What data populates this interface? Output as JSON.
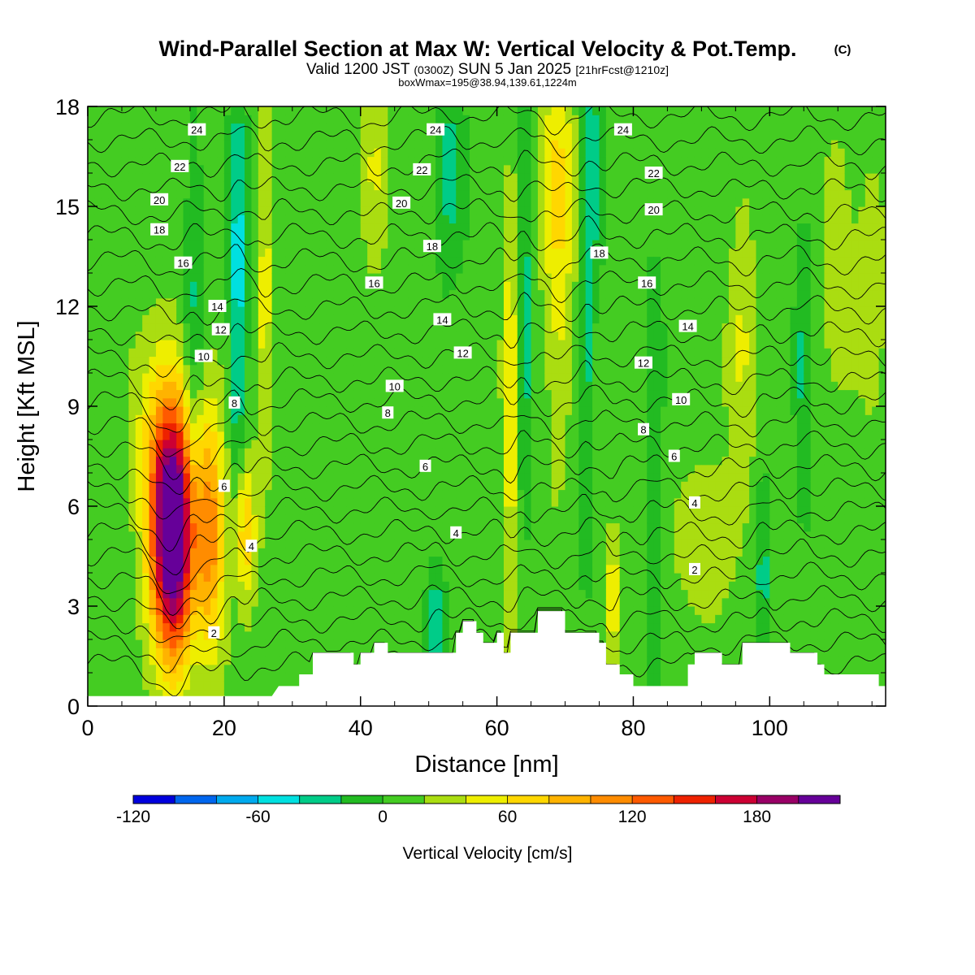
{
  "header": {
    "title": "Wind-Parallel Section at Max W: Vertical Velocity & Pot.Temp.",
    "copyright": "(C)",
    "valid_main": "Valid 1200 JST",
    "valid_zulu": "(0300Z)",
    "valid_date": "SUN 5 Jan 2025",
    "forecast_info": "[21hrFcst@1210z]",
    "box_info": "boxWmax=195@38.94,139.61,1224m"
  },
  "chart_data": {
    "type": "heatmap",
    "xlabel": "Distance [nm]",
    "ylabel": "Height [Kft MSL]",
    "xlim": [
      0,
      117
    ],
    "ylim": [
      0,
      18
    ],
    "x_ticks": [
      0,
      20,
      40,
      60,
      80,
      100
    ],
    "y_ticks": [
      0,
      3,
      6,
      9,
      12,
      15,
      18
    ],
    "x_tick_labels": [
      "0",
      "20",
      "40",
      "60",
      "80",
      "100"
    ],
    "y_tick_labels": [
      "0",
      "3",
      "6",
      "9",
      "12",
      "15",
      "18"
    ],
    "colorbar": {
      "label": "Vertical Velocity [cm/s]",
      "min": -120,
      "max": 220,
      "step": 20,
      "tick_values": [
        -120,
        -60,
        0,
        60,
        120,
        180
      ],
      "tick_labels": [
        "-120",
        "-60",
        "0",
        "60",
        "120",
        "180"
      ],
      "colors": [
        "#0000dd",
        "#0066ee",
        "#00aaee",
        "#00e0e0",
        "#00cc88",
        "#22bb22",
        "#44cc22",
        "#aadd11",
        "#eeee00",
        "#ffd700",
        "#ffb300",
        "#ff8c00",
        "#ff5a00",
        "#ee2200",
        "#cc0033",
        "#990066",
        "#660099"
      ]
    },
    "w_features": [
      {
        "x": 12.5,
        "z": 4.8,
        "amp": 210,
        "sx": 2.2,
        "sz": 2.6
      },
      {
        "x": 11.5,
        "z": 7.5,
        "amp": 70,
        "sx": 3.0,
        "sz": 2.5
      },
      {
        "x": 18,
        "z": 5.2,
        "amp": 95,
        "sx": 1.6,
        "sz": 2.6
      },
      {
        "x": 23,
        "z": 5.3,
        "amp": 80,
        "sx": 1.2,
        "sz": 1.6
      },
      {
        "x": 15.5,
        "z": 10.5,
        "amp": -35,
        "sx": 1.0,
        "sz": 5.0
      },
      {
        "x": 22,
        "z": 12,
        "amp": -60,
        "sx": 0.9,
        "sz": 4.5
      },
      {
        "x": 26,
        "z": 13,
        "amp": 40,
        "sx": 0.8,
        "sz": 4.5
      },
      {
        "x": 42,
        "z": 16,
        "amp": 40,
        "sx": 1.5,
        "sz": 2.0
      },
      {
        "x": 53,
        "z": 16,
        "amp": -40,
        "sx": 1.5,
        "sz": 2.0
      },
      {
        "x": 51,
        "z": 2.5,
        "amp": -50,
        "sx": 1.0,
        "sz": 1.2
      },
      {
        "x": 62,
        "z": 9,
        "amp": 50,
        "sx": 0.8,
        "sz": 5.0
      },
      {
        "x": 64,
        "z": 12,
        "amp": -40,
        "sx": 0.7,
        "sz": 5.0
      },
      {
        "x": 69,
        "z": 15,
        "amp": 55,
        "sx": 1.6,
        "sz": 4.5
      },
      {
        "x": 74,
        "z": 16,
        "amp": -35,
        "sx": 1.0,
        "sz": 3.0
      },
      {
        "x": 77,
        "z": 3.5,
        "amp": 60,
        "sx": 0.6,
        "sz": 1.5
      },
      {
        "x": 73,
        "z": 10,
        "amp": -40,
        "sx": 0.6,
        "sz": 4.0
      },
      {
        "x": 83,
        "z": 7,
        "amp": -30,
        "sx": 0.8,
        "sz": 4.5
      },
      {
        "x": 91,
        "z": 5,
        "amp": 30,
        "sx": 3.0,
        "sz": 1.8
      },
      {
        "x": 96,
        "z": 11,
        "amp": 30,
        "sx": 1.5,
        "sz": 4.0
      },
      {
        "x": 99,
        "z": 4,
        "amp": -40,
        "sx": 0.7,
        "sz": 2.0
      },
      {
        "x": 105,
        "z": 10,
        "amp": -30,
        "sx": 0.8,
        "sz": 4.0
      },
      {
        "x": 110,
        "z": 14,
        "amp": 25,
        "sx": 2.0,
        "sz": 3.0
      },
      {
        "x": 115,
        "z": 13,
        "amp": 25,
        "sx": 1.5,
        "sz": 3.0
      }
    ],
    "terrain": [
      {
        "x": 0,
        "z": 0.3
      },
      {
        "x": 27,
        "z": 0.3
      },
      {
        "x": 28,
        "z": 0.6
      },
      {
        "x": 31,
        "z": 0.6
      },
      {
        "x": 31,
        "z": 0.95
      },
      {
        "x": 33,
        "z": 0.95
      },
      {
        "x": 33,
        "z": 1.6
      },
      {
        "x": 39,
        "z": 1.6
      },
      {
        "x": 39,
        "z": 1.25
      },
      {
        "x": 40,
        "z": 1.25
      },
      {
        "x": 40,
        "z": 1.6
      },
      {
        "x": 42,
        "z": 1.6
      },
      {
        "x": 42,
        "z": 1.9
      },
      {
        "x": 44,
        "z": 1.9
      },
      {
        "x": 44,
        "z": 1.6
      },
      {
        "x": 54,
        "z": 1.6
      },
      {
        "x": 54,
        "z": 2.2
      },
      {
        "x": 55,
        "z": 2.2
      },
      {
        "x": 55,
        "z": 2.55
      },
      {
        "x": 57,
        "z": 2.55
      },
      {
        "x": 57,
        "z": 2.2
      },
      {
        "x": 58,
        "z": 2.2
      },
      {
        "x": 58,
        "z": 1.9
      },
      {
        "x": 60,
        "z": 1.9
      },
      {
        "x": 60,
        "z": 2.2
      },
      {
        "x": 61,
        "z": 2.2
      },
      {
        "x": 61,
        "z": 1.6
      },
      {
        "x": 62,
        "z": 1.6
      },
      {
        "x": 62,
        "z": 2.2
      },
      {
        "x": 66,
        "z": 2.2
      },
      {
        "x": 66,
        "z": 2.85
      },
      {
        "x": 70,
        "z": 2.85
      },
      {
        "x": 70,
        "z": 2.2
      },
      {
        "x": 75,
        "z": 2.2
      },
      {
        "x": 75,
        "z": 1.9
      },
      {
        "x": 76,
        "z": 1.9
      },
      {
        "x": 76,
        "z": 1.25
      },
      {
        "x": 78,
        "z": 1.25
      },
      {
        "x": 78,
        "z": 0.95
      },
      {
        "x": 80,
        "z": 0.95
      },
      {
        "x": 80,
        "z": 0.6
      },
      {
        "x": 88,
        "z": 0.6
      },
      {
        "x": 88,
        "z": 1.25
      },
      {
        "x": 89,
        "z": 1.25
      },
      {
        "x": 89,
        "z": 1.6
      },
      {
        "x": 93,
        "z": 1.6
      },
      {
        "x": 93,
        "z": 1.25
      },
      {
        "x": 96,
        "z": 1.25
      },
      {
        "x": 96,
        "z": 1.9
      },
      {
        "x": 103,
        "z": 1.9
      },
      {
        "x": 103,
        "z": 1.6
      },
      {
        "x": 107,
        "z": 1.6
      },
      {
        "x": 107,
        "z": 1.25
      },
      {
        "x": 108,
        "z": 1.25
      },
      {
        "x": 108,
        "z": 0.95
      },
      {
        "x": 116,
        "z": 0.95
      },
      {
        "x": 116,
        "z": 0.6
      },
      {
        "x": 117,
        "z": 0.6
      }
    ],
    "theta_contours": [
      1,
      2,
      3,
      4,
      5,
      6,
      7,
      8,
      9,
      10,
      11,
      12,
      13,
      14,
      15,
      16,
      17,
      18,
      19,
      20,
      21,
      22,
      23,
      24,
      25
    ],
    "theta_labels": [
      {
        "text": "24",
        "x": 16,
        "z": 17.3
      },
      {
        "text": "22",
        "x": 13.5,
        "z": 16.2
      },
      {
        "text": "20",
        "x": 10.5,
        "z": 15.2
      },
      {
        "text": "18",
        "x": 10.5,
        "z": 14.3
      },
      {
        "text": "16",
        "x": 14,
        "z": 13.3
      },
      {
        "text": "14",
        "x": 19,
        "z": 12.0
      },
      {
        "text": "12",
        "x": 19.5,
        "z": 11.3
      },
      {
        "text": "10",
        "x": 17,
        "z": 10.5
      },
      {
        "text": "8",
        "x": 21.5,
        "z": 9.1
      },
      {
        "text": "6",
        "x": 20,
        "z": 6.6
      },
      {
        "text": "4",
        "x": 24,
        "z": 4.8
      },
      {
        "text": "2",
        "x": 18.5,
        "z": 2.2
      },
      {
        "text": "24",
        "x": 51,
        "z": 17.3
      },
      {
        "text": "22",
        "x": 49,
        "z": 16.1
      },
      {
        "text": "20",
        "x": 46,
        "z": 15.1
      },
      {
        "text": "18",
        "x": 50.5,
        "z": 13.8
      },
      {
        "text": "16",
        "x": 42,
        "z": 12.7
      },
      {
        "text": "14",
        "x": 52,
        "z": 11.6
      },
      {
        "text": "12",
        "x": 55,
        "z": 10.6
      },
      {
        "text": "10",
        "x": 45,
        "z": 9.6
      },
      {
        "text": "8",
        "x": 44,
        "z": 8.8
      },
      {
        "text": "6",
        "x": 49.5,
        "z": 7.2
      },
      {
        "text": "4",
        "x": 54,
        "z": 5.2
      },
      {
        "text": "24",
        "x": 78.5,
        "z": 17.3
      },
      {
        "text": "22",
        "x": 83,
        "z": 16.0
      },
      {
        "text": "20",
        "x": 83,
        "z": 14.9
      },
      {
        "text": "18",
        "x": 75,
        "z": 13.6
      },
      {
        "text": "16",
        "x": 82,
        "z": 12.7
      },
      {
        "text": "14",
        "x": 88,
        "z": 11.4
      },
      {
        "text": "12",
        "x": 81.5,
        "z": 10.3
      },
      {
        "text": "10",
        "x": 87,
        "z": 9.2
      },
      {
        "text": "8",
        "x": 81.5,
        "z": 8.3
      },
      {
        "text": "6",
        "x": 86,
        "z": 7.5
      },
      {
        "text": "4",
        "x": 89,
        "z": 6.1
      },
      {
        "text": "2",
        "x": 89,
        "z": 4.1
      }
    ]
  }
}
